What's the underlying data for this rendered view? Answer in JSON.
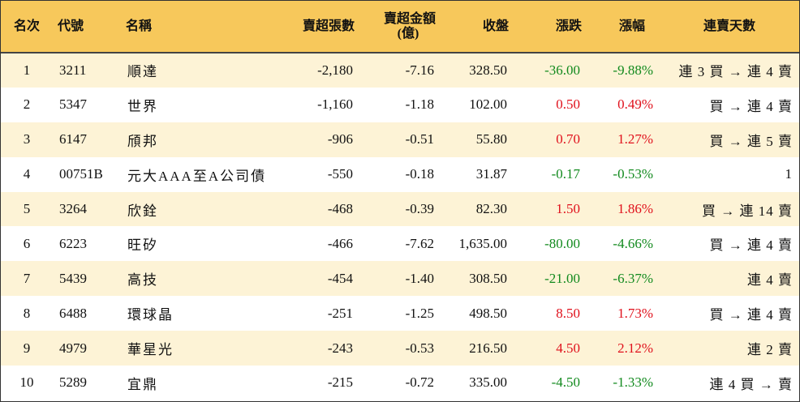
{
  "colors": {
    "header_bg": "#f7c85b",
    "odd_row_bg": "#fdf3d6",
    "up": "#e0111c",
    "down": "#128a1e"
  },
  "headers": {
    "rank": "名次",
    "code": "代號",
    "name": "名稱",
    "net_sell_lots": "賣超張數",
    "net_sell_amount_line1": "賣超金額",
    "net_sell_amount_line2": "(億)",
    "close": "收盤",
    "change": "漲跌",
    "change_pct": "漲幅",
    "streak": "連賣天數"
  },
  "rows": [
    {
      "rank": "1",
      "code": "3211",
      "name": "順達",
      "lots": "-2,180",
      "amount": "-7.16",
      "close": "328.50",
      "change": "-36.00",
      "pct": "-9.88%",
      "dir": "down",
      "streak": "連 3 買 → 連 4 賣"
    },
    {
      "rank": "2",
      "code": "5347",
      "name": "世界",
      "lots": "-1,160",
      "amount": "-1.18",
      "close": "102.00",
      "change": "0.50",
      "pct": "0.49%",
      "dir": "up",
      "streak": "買 → 連 4 賣"
    },
    {
      "rank": "3",
      "code": "6147",
      "name": "頎邦",
      "lots": "-906",
      "amount": "-0.51",
      "close": "55.80",
      "change": "0.70",
      "pct": "1.27%",
      "dir": "up",
      "streak": "買 → 連 5 賣"
    },
    {
      "rank": "4",
      "code": "00751B",
      "name": "元大AAA至A公司債",
      "lots": "-550",
      "amount": "-0.18",
      "close": "31.87",
      "change": "-0.17",
      "pct": "-0.53%",
      "dir": "down",
      "streak": "1"
    },
    {
      "rank": "5",
      "code": "3264",
      "name": "欣銓",
      "lots": "-468",
      "amount": "-0.39",
      "close": "82.30",
      "change": "1.50",
      "pct": "1.86%",
      "dir": "up",
      "streak": "買 → 連 14 賣"
    },
    {
      "rank": "6",
      "code": "6223",
      "name": "旺矽",
      "lots": "-466",
      "amount": "-7.62",
      "close": "1,635.00",
      "change": "-80.00",
      "pct": "-4.66%",
      "dir": "down",
      "streak": "買 → 連 4 賣"
    },
    {
      "rank": "7",
      "code": "5439",
      "name": "高技",
      "lots": "-454",
      "amount": "-1.40",
      "close": "308.50",
      "change": "-21.00",
      "pct": "-6.37%",
      "dir": "down",
      "streak": "連 4 賣"
    },
    {
      "rank": "8",
      "code": "6488",
      "name": "環球晶",
      "lots": "-251",
      "amount": "-1.25",
      "close": "498.50",
      "change": "8.50",
      "pct": "1.73%",
      "dir": "up",
      "streak": "買 → 連 4 賣"
    },
    {
      "rank": "9",
      "code": "4979",
      "name": "華星光",
      "lots": "-243",
      "amount": "-0.53",
      "close": "216.50",
      "change": "4.50",
      "pct": "2.12%",
      "dir": "up",
      "streak": "連 2 賣"
    },
    {
      "rank": "10",
      "code": "5289",
      "name": "宜鼎",
      "lots": "-215",
      "amount": "-0.72",
      "close": "335.00",
      "change": "-4.50",
      "pct": "-1.33%",
      "dir": "down",
      "streak": "連 4 買 → 賣"
    }
  ]
}
